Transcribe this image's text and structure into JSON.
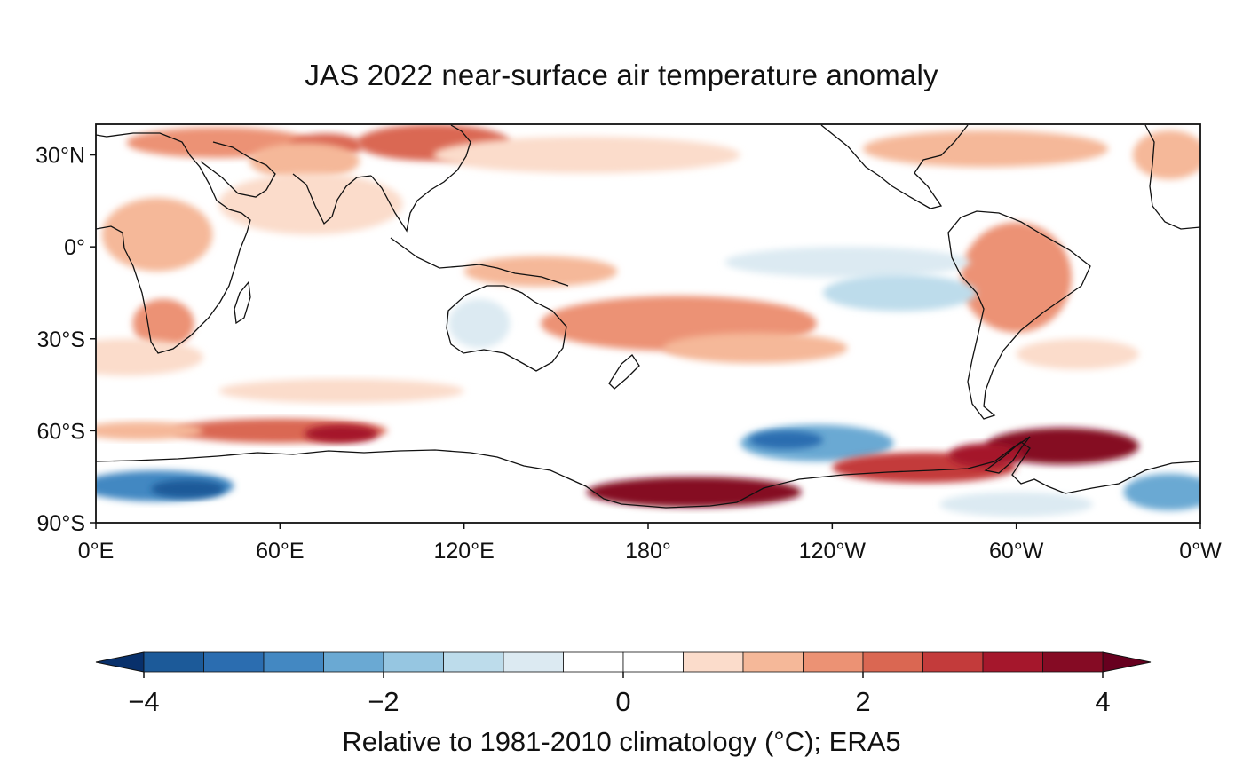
{
  "title": "JAS 2022 near-surface air temperature anomaly",
  "map": {
    "projection": "equirectangular",
    "lon_range": [
      0,
      360
    ],
    "lat_range": [
      -90,
      40
    ],
    "lat_ticks": [
      {
        "value": 30,
        "label": "30°N"
      },
      {
        "value": 0,
        "label": "0°"
      },
      {
        "value": -30,
        "label": "30°S"
      },
      {
        "value": -60,
        "label": "60°S"
      },
      {
        "value": -90,
        "label": "90°S"
      }
    ],
    "lon_ticks": [
      {
        "value": 0,
        "label": "0°E"
      },
      {
        "value": 60,
        "label": "60°E"
      },
      {
        "value": 120,
        "label": "120°E"
      },
      {
        "value": 180,
        "label": "180°"
      },
      {
        "value": 240,
        "label": "120°W"
      },
      {
        "value": 300,
        "label": "60°W"
      },
      {
        "value": 360,
        "label": "0°W"
      }
    ],
    "anomaly_regions": [
      {
        "lon": 40,
        "lat": 34,
        "rx": 30,
        "ry": 5,
        "v": 1.5
      },
      {
        "lon": 110,
        "lat": 34,
        "rx": 25,
        "ry": 6,
        "v": 2.0
      },
      {
        "lon": 75,
        "lat": 33,
        "rx": 12,
        "ry": 4,
        "v": 2.4
      },
      {
        "lon": 68,
        "lat": 28,
        "rx": 18,
        "ry": 6,
        "v": 1.2
      },
      {
        "lon": 290,
        "lat": 32,
        "rx": 40,
        "ry": 6,
        "v": 1.4
      },
      {
        "lon": 350,
        "lat": 30,
        "rx": 12,
        "ry": 8,
        "v": 1.3
      },
      {
        "lon": 160,
        "lat": 30,
        "rx": 50,
        "ry": 6,
        "v": 0.8
      },
      {
        "lon": 70,
        "lat": 14,
        "rx": 30,
        "ry": 10,
        "v": 0.7
      },
      {
        "lon": 20,
        "lat": 4,
        "rx": 18,
        "ry": 12,
        "v": 1.4
      },
      {
        "lon": 22,
        "lat": -25,
        "rx": 10,
        "ry": 8,
        "v": 1.6
      },
      {
        "lon": 10,
        "lat": -36,
        "rx": 25,
        "ry": 6,
        "v": 0.8
      },
      {
        "lon": 300,
        "lat": -10,
        "rx": 18,
        "ry": 18,
        "v": 1.5
      },
      {
        "lon": 320,
        "lat": -35,
        "rx": 20,
        "ry": 5,
        "v": 0.9
      },
      {
        "lon": 190,
        "lat": -25,
        "rx": 45,
        "ry": 9,
        "v": 1.8
      },
      {
        "lon": 215,
        "lat": -33,
        "rx": 30,
        "ry": 5,
        "v": 1.3
      },
      {
        "lon": 145,
        "lat": -8,
        "rx": 25,
        "ry": 5,
        "v": 1.2
      },
      {
        "lon": 80,
        "lat": -47,
        "rx": 40,
        "ry": 4,
        "v": 0.7
      },
      {
        "lon": 60,
        "lat": -60,
        "rx": 35,
        "ry": 4,
        "v": 2.1
      },
      {
        "lon": 80,
        "lat": -61,
        "rx": 12,
        "ry": 3,
        "v": 3.0
      },
      {
        "lon": 15,
        "lat": -60,
        "rx": 20,
        "ry": 3,
        "v": 1.0
      },
      {
        "lon": 235,
        "lat": -64,
        "rx": 25,
        "ry": 6,
        "v": -2.5
      },
      {
        "lon": 225,
        "lat": -63,
        "rx": 12,
        "ry": 3,
        "v": -3.3
      },
      {
        "lon": 245,
        "lat": -5,
        "rx": 40,
        "ry": 5,
        "v": -0.9
      },
      {
        "lon": 262,
        "lat": -15,
        "rx": 25,
        "ry": 6,
        "v": -1.2
      },
      {
        "lon": 125,
        "lat": -25,
        "rx": 10,
        "ry": 8,
        "v": -0.8
      },
      {
        "lon": 20,
        "lat": -78,
        "rx": 25,
        "ry": 5,
        "v": -3.0
      },
      {
        "lon": 30,
        "lat": -79,
        "rx": 12,
        "ry": 3,
        "v": -3.8
      },
      {
        "lon": 195,
        "lat": -80,
        "rx": 35,
        "ry": 5,
        "v": 3.6
      },
      {
        "lon": 270,
        "lat": -72,
        "rx": 30,
        "ry": 5,
        "v": 2.8
      },
      {
        "lon": 315,
        "lat": -65,
        "rx": 25,
        "ry": 6,
        "v": 3.6
      },
      {
        "lon": 290,
        "lat": -68,
        "rx": 12,
        "ry": 4,
        "v": 3.2
      },
      {
        "lon": 350,
        "lat": -80,
        "rx": 15,
        "ry": 6,
        "v": -2.3
      },
      {
        "lon": 300,
        "lat": -84,
        "rx": 25,
        "ry": 4,
        "v": -1.0
      }
    ]
  },
  "colorbar": {
    "vmin": -4,
    "vmax": 4,
    "step": 0.5,
    "ticks": [
      {
        "value": -4,
        "label": "−4"
      },
      {
        "value": -2,
        "label": "−2"
      },
      {
        "value": 0,
        "label": "0"
      },
      {
        "value": 2,
        "label": "2"
      },
      {
        "value": 4,
        "label": "4"
      }
    ],
    "colors": [
      "#1c5a99",
      "#2b6db0",
      "#4388c2",
      "#6aa9d3",
      "#96c6e1",
      "#bddceb",
      "#dceaf2",
      "#ffffff",
      "#ffffff",
      "#fbdccb",
      "#f5b899",
      "#ec9274",
      "#da6752",
      "#c33b3b",
      "#a5172c",
      "#850b24"
    ],
    "under_color": "#08306b",
    "over_color": "#67001f",
    "label": "Relative to 1981-2010 climatology (°C); ERA5"
  }
}
